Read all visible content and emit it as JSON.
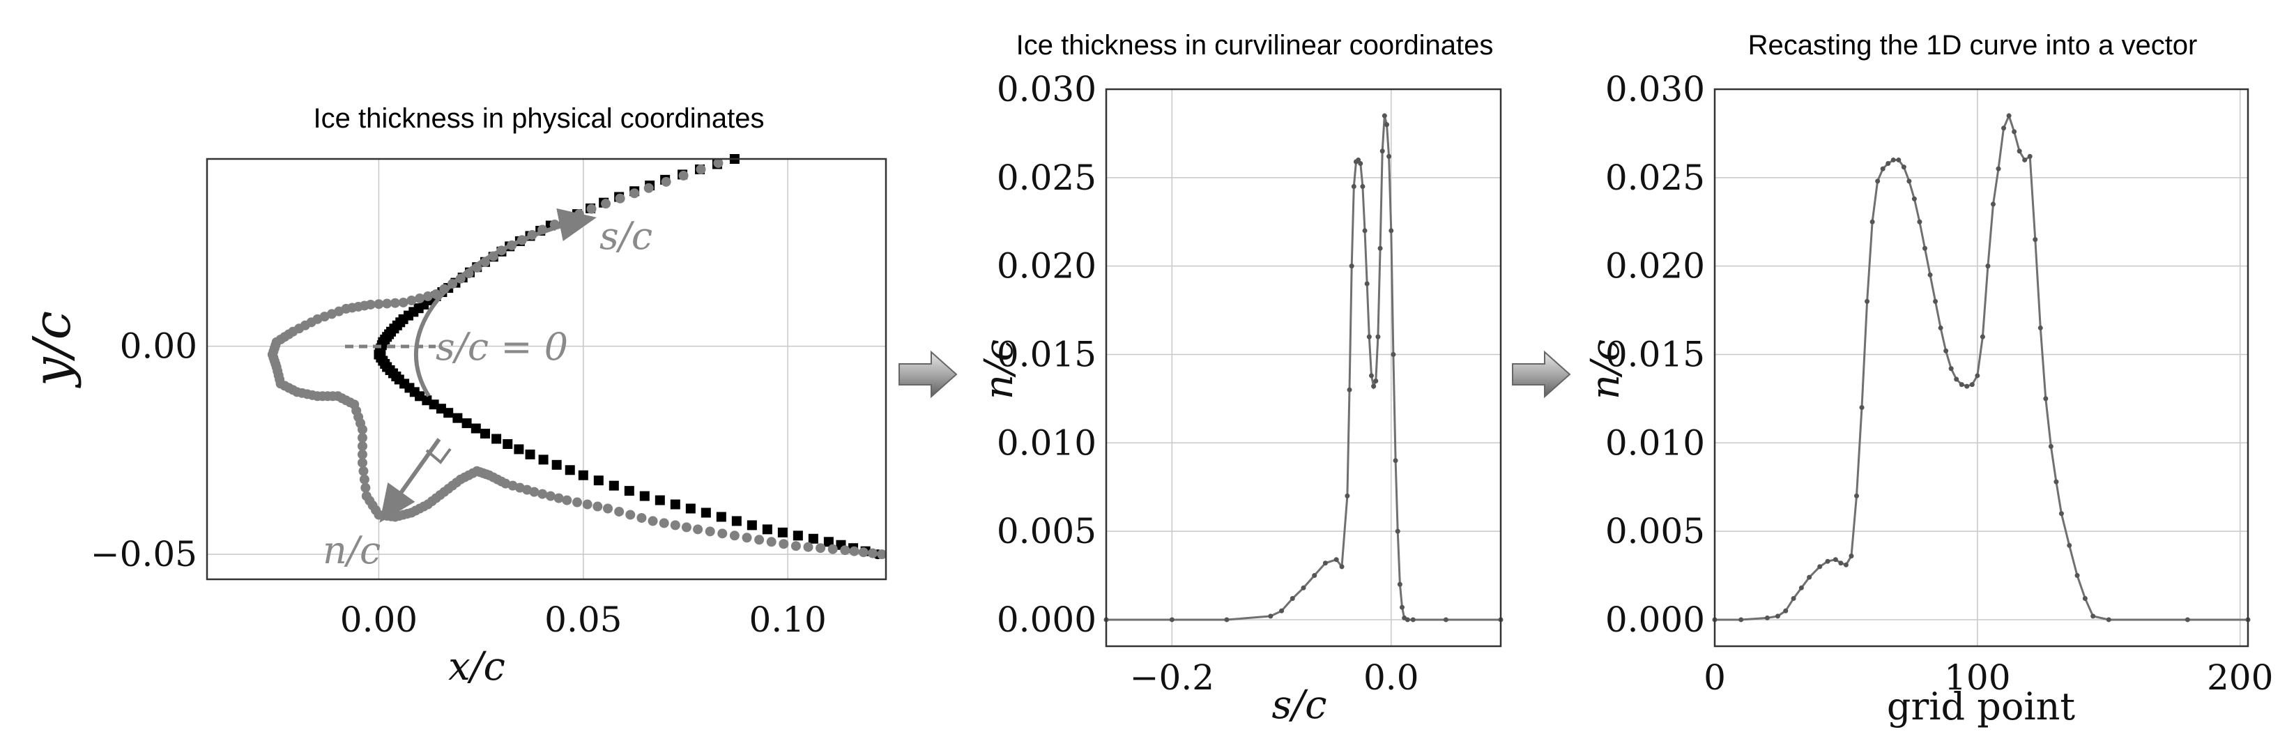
{
  "chart_data": [
    {
      "type": "scatter",
      "title": "Ice thickness in physical coordinates",
      "xlabel": "x/c",
      "ylabel": "y/c",
      "xlim": [
        -0.042,
        0.124
      ],
      "ylim": [
        -0.056,
        0.045
      ],
      "xticks": [
        0.0,
        0.05,
        0.1
      ],
      "xtick_labels": [
        "0.00",
        "0.05",
        "0.10"
      ],
      "yticks": [
        0.0,
        -0.05
      ],
      "ytick_labels": [
        "0.00",
        "−0.05"
      ],
      "grid": true,
      "annotations": {
        "s_label": "s/c",
        "s0_label": "s/c = 0",
        "n_label": "n/c"
      },
      "series": [
        {
          "kind": "airfoil-surface",
          "points": [
            [
              0.087,
              0.045
            ],
            [
              0.07,
              0.04
            ],
            [
              0.055,
              0.0345
            ],
            [
              0.042,
              0.029
            ],
            [
              0.032,
              0.024
            ],
            [
              0.024,
              0.019
            ],
            [
              0.017,
              0.014
            ],
            [
              0.011,
              0.01
            ],
            [
              0.006,
              0.0065
            ],
            [
              0.003,
              0.0035
            ],
            [
              0.001,
              0.001
            ],
            [
              0.0,
              -0.002
            ],
            [
              0.002,
              -0.005
            ],
            [
              0.005,
              -0.008
            ],
            [
              0.01,
              -0.012
            ],
            [
              0.017,
              -0.016
            ],
            [
              0.026,
              -0.021
            ],
            [
              0.037,
              -0.026
            ],
            [
              0.05,
              -0.031
            ],
            [
              0.065,
              -0.036
            ],
            [
              0.08,
              -0.04
            ],
            [
              0.095,
              -0.044
            ],
            [
              0.11,
              -0.047
            ],
            [
              0.122,
              -0.05
            ]
          ]
        },
        {
          "kind": "ice-shape",
          "points": [
            [
              0.083,
              0.044
            ],
            [
              0.066,
              0.038
            ],
            [
              0.052,
              0.033
            ],
            [
              0.04,
              0.028
            ],
            [
              0.03,
              0.023
            ],
            [
              0.022,
              0.0175
            ],
            [
              0.014,
              0.0125
            ],
            [
              0.006,
              0.0105
            ],
            [
              -0.002,
              0.01
            ],
            [
              -0.008,
              0.009
            ],
            [
              -0.015,
              0.0065
            ],
            [
              -0.021,
              0.0035
            ],
            [
              -0.025,
              0.001
            ],
            [
              -0.026,
              -0.002
            ],
            [
              -0.025,
              -0.005
            ],
            [
              -0.024,
              -0.009
            ],
            [
              -0.02,
              -0.011
            ],
            [
              -0.015,
              -0.012
            ],
            [
              -0.01,
              -0.012
            ],
            [
              -0.006,
              -0.014
            ],
            [
              -0.004,
              -0.02
            ],
            [
              -0.004,
              -0.028
            ],
            [
              -0.003,
              -0.036
            ],
            [
              0.0,
              -0.0405
            ],
            [
              0.004,
              -0.041
            ],
            [
              0.008,
              -0.04
            ],
            [
              0.012,
              -0.038
            ],
            [
              0.016,
              -0.035
            ],
            [
              0.02,
              -0.032
            ],
            [
              0.024,
              -0.03
            ],
            [
              0.027,
              -0.031
            ],
            [
              0.031,
              -0.033
            ],
            [
              0.038,
              -0.035
            ],
            [
              0.046,
              -0.037
            ],
            [
              0.056,
              -0.039
            ],
            [
              0.067,
              -0.042
            ],
            [
              0.078,
              -0.044
            ],
            [
              0.09,
              -0.046
            ],
            [
              0.102,
              -0.048
            ],
            [
              0.114,
              -0.049
            ],
            [
              0.123,
              -0.05
            ]
          ]
        }
      ]
    },
    {
      "type": "line",
      "title": "Ice thickness in curvilinear coordinates",
      "xlabel": "s/c",
      "ylabel": "n/c",
      "xlim": [
        -0.26,
        0.1
      ],
      "ylim": [
        -0.0015,
        0.03
      ],
      "xticks": [
        -0.2,
        0.0
      ],
      "xtick_labels": [
        "−0.2",
        "0.0"
      ],
      "yticks": [
        0.0,
        0.005,
        0.01,
        0.015,
        0.02,
        0.025,
        0.03
      ],
      "ytick_labels": [
        "0.000",
        "0.005",
        "0.010",
        "0.015",
        "0.020",
        "0.025",
        "0.030"
      ],
      "grid": true,
      "series": [
        {
          "x": [
            -0.26,
            -0.2,
            -0.15,
            -0.11,
            -0.1,
            -0.09,
            -0.08,
            -0.07,
            -0.06,
            -0.05,
            -0.045,
            -0.04,
            -0.038,
            -0.036,
            -0.034,
            -0.032,
            -0.03,
            -0.028,
            -0.026,
            -0.024,
            -0.022,
            -0.02,
            -0.018,
            -0.016,
            -0.014,
            -0.012,
            -0.01,
            -0.008,
            -0.006,
            -0.004,
            -0.002,
            0.0,
            0.002,
            0.004,
            0.006,
            0.008,
            0.01,
            0.012,
            0.015,
            0.02,
            0.05,
            0.1
          ],
          "y": [
            0.0,
            0.0,
            0.0,
            0.0002,
            0.0005,
            0.0012,
            0.0018,
            0.0025,
            0.0032,
            0.0034,
            0.003,
            0.007,
            0.013,
            0.02,
            0.0245,
            0.0259,
            0.026,
            0.0258,
            0.0245,
            0.022,
            0.019,
            0.016,
            0.0138,
            0.0132,
            0.0135,
            0.016,
            0.021,
            0.0265,
            0.0285,
            0.028,
            0.0262,
            0.022,
            0.015,
            0.009,
            0.005,
            0.002,
            0.0007,
            0.0001,
            0.0,
            0.0,
            0.0,
            0.0
          ]
        }
      ]
    },
    {
      "type": "line",
      "title": "Recasting the 1D curve into a vector",
      "xlabel": "grid point",
      "ylabel": "n/c",
      "xlim": [
        0,
        203
      ],
      "ylim": [
        -0.0015,
        0.03
      ],
      "xticks": [
        0,
        100,
        200
      ],
      "xtick_labels": [
        "0",
        "100",
        "200"
      ],
      "yticks": [
        0.0,
        0.005,
        0.01,
        0.015,
        0.02,
        0.025,
        0.03
      ],
      "ytick_labels": [
        "0.000",
        "0.005",
        "0.010",
        "0.015",
        "0.020",
        "0.025",
        "0.030"
      ],
      "grid": true,
      "series": [
        {
          "x": [
            0,
            10,
            20,
            24,
            27,
            30,
            33,
            36,
            40,
            43,
            46,
            48,
            50,
            52,
            54,
            56,
            58,
            60,
            62,
            64,
            66,
            68,
            70,
            72,
            74,
            76,
            78,
            80,
            82,
            84,
            86,
            88,
            90,
            92,
            94,
            96,
            98,
            100,
            102,
            104,
            106,
            108,
            110,
            112,
            114,
            116,
            118,
            120,
            122,
            124,
            126,
            128,
            130,
            132,
            135,
            138,
            141,
            144,
            150,
            180,
            203
          ],
          "y": [
            0.0,
            0.0,
            0.0001,
            0.0002,
            0.0005,
            0.0012,
            0.0018,
            0.0024,
            0.003,
            0.0033,
            0.0034,
            0.0032,
            0.0031,
            0.0036,
            0.007,
            0.012,
            0.018,
            0.0225,
            0.0248,
            0.0255,
            0.0258,
            0.026,
            0.026,
            0.0256,
            0.0248,
            0.0238,
            0.0225,
            0.021,
            0.0195,
            0.018,
            0.0165,
            0.0152,
            0.0142,
            0.0136,
            0.0133,
            0.0132,
            0.0133,
            0.0138,
            0.016,
            0.02,
            0.0235,
            0.0255,
            0.0278,
            0.0285,
            0.0276,
            0.0265,
            0.026,
            0.0262,
            0.0215,
            0.0165,
            0.0125,
            0.0098,
            0.0078,
            0.006,
            0.0042,
            0.0025,
            0.0012,
            0.0002,
            0.0,
            0.0,
            0.0
          ]
        }
      ]
    }
  ]
}
